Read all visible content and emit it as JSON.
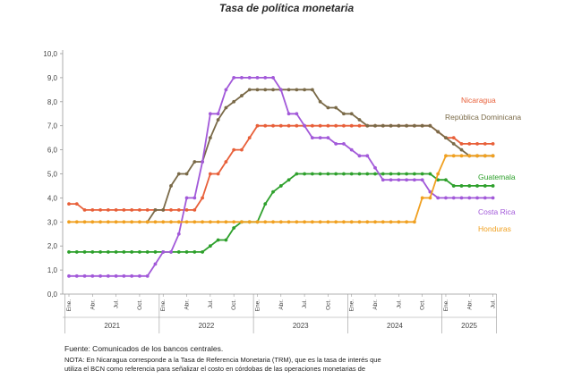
{
  "chart_data": {
    "type": "line",
    "title": "Tasa de política monetaria",
    "ylim": [
      0,
      10
    ],
    "yticks": [
      "0,0",
      "1,0",
      "2,0",
      "3,0",
      "4,0",
      "5,0",
      "6,0",
      "7,0",
      "8,0",
      "9,0",
      "10,0"
    ],
    "month_labels": [
      "Ene.",
      "Abr.",
      "Jul.",
      "Oct."
    ],
    "years": [
      "2021",
      "2022",
      "2023",
      "2024",
      "2025"
    ],
    "x_range_months": [
      0,
      54
    ],
    "grid": false,
    "legend": "inline labels at right",
    "series": [
      {
        "name": "Nicaragua",
        "color": "#e8603a",
        "values": [
          3.75,
          3.75,
          3.5,
          3.5,
          3.5,
          3.5,
          3.5,
          3.5,
          3.5,
          3.5,
          3.5,
          3.5,
          3.5,
          3.5,
          3.5,
          3.5,
          3.5,
          4.0,
          5.0,
          5.0,
          5.5,
          6.0,
          6.0,
          6.5,
          7.0,
          7.0,
          7.0,
          7.0,
          7.0,
          7.0,
          7.0,
          7.0,
          7.0,
          7.0,
          7.0,
          7.0,
          7.0,
          7.0,
          7.0,
          7.0,
          7.0,
          7.0,
          7.0,
          7.0,
          7.0,
          7.0,
          7.0,
          6.75,
          6.5,
          6.5,
          6.25,
          6.25,
          6.25,
          6.25,
          6.25
        ]
      },
      {
        "name": "República Dominicana",
        "color": "#7a6a48",
        "values": [
          null,
          null,
          null,
          null,
          null,
          null,
          null,
          null,
          null,
          null,
          3.0,
          3.5,
          3.5,
          4.5,
          5.0,
          5.0,
          5.5,
          5.5,
          6.5,
          7.25,
          7.75,
          8.0,
          8.25,
          8.5,
          8.5,
          8.5,
          8.5,
          8.5,
          8.5,
          8.5,
          8.5,
          8.5,
          8.0,
          7.75,
          7.75,
          7.5,
          7.5,
          7.25,
          7.0,
          7.0,
          7.0,
          7.0,
          7.0,
          7.0,
          7.0,
          7.0,
          7.0,
          6.75,
          6.5,
          6.25,
          6.0,
          5.75,
          5.75,
          5.75,
          5.75
        ]
      },
      {
        "name": "Guatemala",
        "color": "#2ea02c",
        "values": [
          1.75,
          1.75,
          1.75,
          1.75,
          1.75,
          1.75,
          1.75,
          1.75,
          1.75,
          1.75,
          1.75,
          1.75,
          1.75,
          1.75,
          1.75,
          1.75,
          1.75,
          1.75,
          2.0,
          2.25,
          2.25,
          2.75,
          3.0,
          3.0,
          3.0,
          3.75,
          4.25,
          4.5,
          4.75,
          5.0,
          5.0,
          5.0,
          5.0,
          5.0,
          5.0,
          5.0,
          5.0,
          5.0,
          5.0,
          5.0,
          5.0,
          5.0,
          5.0,
          5.0,
          5.0,
          5.0,
          5.0,
          4.75,
          4.75,
          4.5,
          4.5,
          4.5,
          4.5,
          4.5,
          4.5
        ]
      },
      {
        "name": "Costa Rica",
        "color": "#a259d9",
        "values": [
          0.75,
          0.75,
          0.75,
          0.75,
          0.75,
          0.75,
          0.75,
          0.75,
          0.75,
          0.75,
          0.75,
          1.25,
          1.75,
          1.75,
          2.5,
          4.0,
          4.0,
          5.5,
          7.5,
          7.5,
          8.5,
          9.0,
          9.0,
          9.0,
          9.0,
          9.0,
          9.0,
          8.5,
          7.5,
          7.5,
          7.0,
          6.5,
          6.5,
          6.5,
          6.25,
          6.25,
          6.0,
          5.75,
          5.75,
          5.25,
          4.75,
          4.75,
          4.75,
          4.75,
          4.75,
          4.75,
          4.25,
          4.0,
          4.0,
          4.0,
          4.0,
          4.0,
          4.0,
          4.0,
          4.0
        ]
      },
      {
        "name": "Honduras",
        "color": "#f0a020",
        "values": [
          3.0,
          3.0,
          3.0,
          3.0,
          3.0,
          3.0,
          3.0,
          3.0,
          3.0,
          3.0,
          3.0,
          3.0,
          3.0,
          3.0,
          3.0,
          3.0,
          3.0,
          3.0,
          3.0,
          3.0,
          3.0,
          3.0,
          3.0,
          3.0,
          3.0,
          3.0,
          3.0,
          3.0,
          3.0,
          3.0,
          3.0,
          3.0,
          3.0,
          3.0,
          3.0,
          3.0,
          3.0,
          3.0,
          3.0,
          3.0,
          3.0,
          3.0,
          3.0,
          3.0,
          3.0,
          4.0,
          4.0,
          5.0,
          5.75,
          5.75,
          5.75,
          5.75,
          5.75,
          5.75,
          5.75
        ]
      }
    ]
  },
  "source": "Fuente: Comunicados de los bancos centrales.",
  "note": "NOTA: En Nicaragua corresponde a la Tasa de Referencia Monetaria (TRM), que es la tasa de interés que\nutiliza el BCN como referencia para señalizar el costo en córdobas de las operaciones monetarias de"
}
